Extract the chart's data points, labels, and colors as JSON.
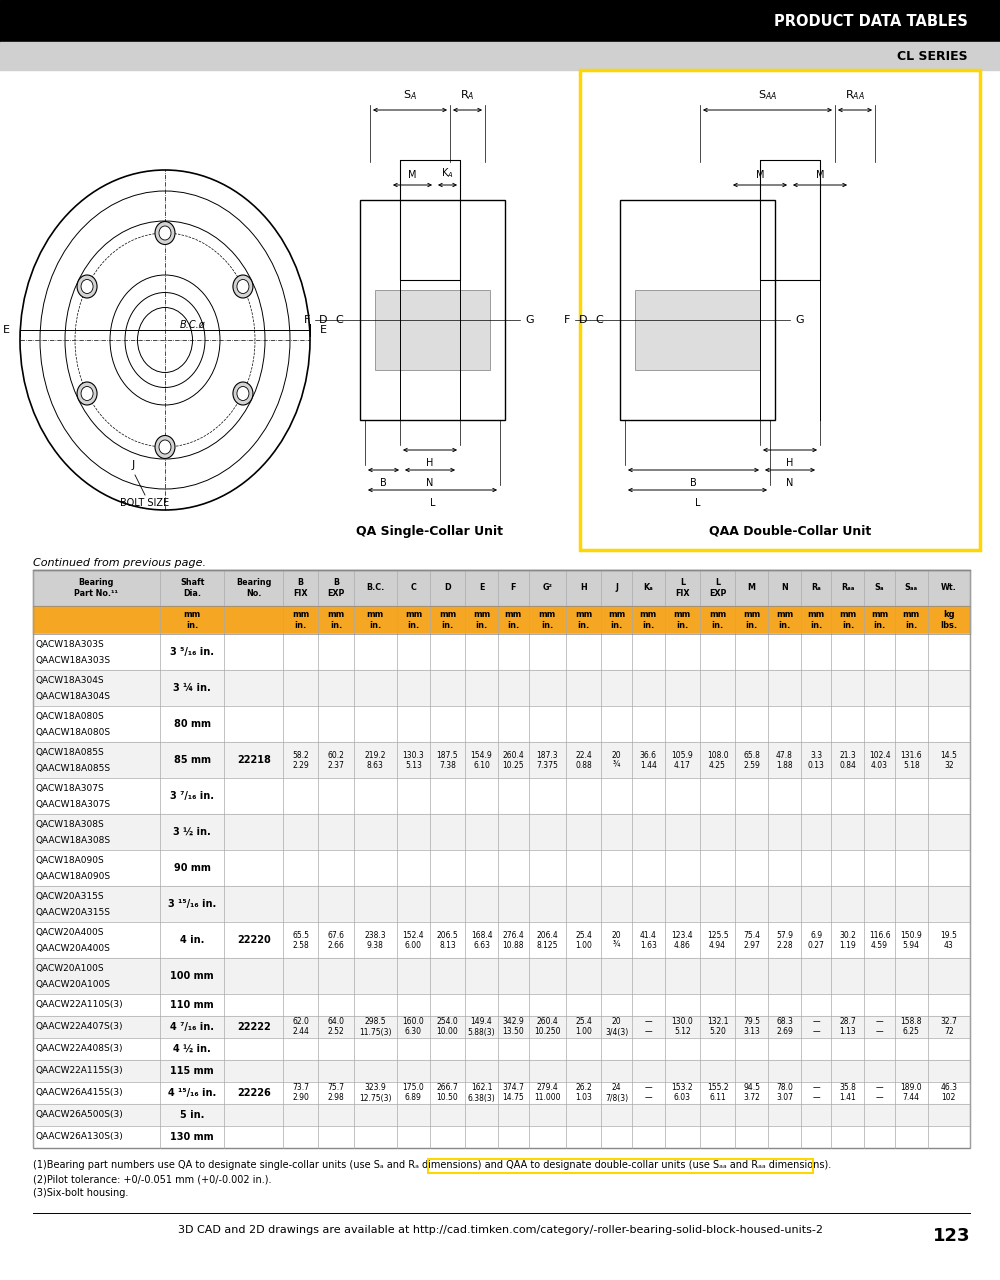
{
  "header_title": "PRODUCT DATA TABLES",
  "sub_header": "CL SERIES",
  "continued_text": "Continued from previous page.",
  "page_footer": "3D CAD and 2D drawings are available at http://cad.timken.com/category/-roller-bearing-solid-block-housed-units-2",
  "page_number": "123",
  "orange_row_bg": "#F5A623",
  "footnote1a": "(1)Bearing part numbers use QA to designate single-collar units (use S",
  "footnote1b": "A",
  "footnote1c": " and R",
  "footnote1d": "A",
  "footnote1e": " dimensions) and ",
  "footnote1f": "QAA to designate double-collar units (use S",
  "footnote1g": "AA",
  "footnote1h": " and R",
  "footnote1i": "AA",
  "footnote1j": " dimensions).",
  "footnote2": "(2)Pilot tolerance: +0/-0.051 mm (+0/-0.002 in.).",
  "footnote3": "(3)Six-bolt housing.",
  "rows": [
    {
      "part1": "QACW18A303S",
      "part2": "QAACW18A303S",
      "shaft": "3 ⁵/₁₆ in.",
      "bearing": "",
      "has_data": false,
      "mm": [],
      "inch": []
    },
    {
      "part1": "QACW18A304S",
      "part2": "QAACW18A304S",
      "shaft": "3 ¼ in.",
      "bearing": "",
      "has_data": false,
      "mm": [],
      "inch": []
    },
    {
      "part1": "QACW18A080S",
      "part2": "QAACW18A080S",
      "shaft": "80 mm",
      "bearing": "",
      "has_data": false,
      "mm": [],
      "inch": []
    },
    {
      "part1": "QACW18A085S",
      "part2": "QAACW18A085S",
      "shaft": "85 mm",
      "bearing": "22218",
      "has_data": true,
      "mm": [
        "58.2",
        "60.2",
        "219.2",
        "130.3",
        "187.5",
        "154.9",
        "260.4",
        "187.3",
        "22.4",
        "20",
        "36.6",
        "105.9",
        "108.0",
        "65.8",
        "47.8",
        "3.3",
        "21.3",
        "102.4",
        "131.6",
        "14.5"
      ],
      "inch": [
        "2.29",
        "2.37",
        "8.63",
        "5.13",
        "7.38",
        "6.10",
        "10.25",
        "7.375",
        "0.88",
        "¾",
        "1.44",
        "4.17",
        "4.25",
        "2.59",
        "1.88",
        "0.13",
        "0.84",
        "4.03",
        "5.18",
        "32"
      ]
    },
    {
      "part1": "QACW18A307S",
      "part2": "QAACW18A307S",
      "shaft": "3 ⁷/₁₆ in.",
      "bearing": "",
      "has_data": false,
      "mm": [],
      "inch": []
    },
    {
      "part1": "QACW18A308S",
      "part2": "QAACW18A308S",
      "shaft": "3 ½ in.",
      "bearing": "",
      "has_data": false,
      "mm": [],
      "inch": []
    },
    {
      "part1": "QACW18A090S",
      "part2": "QAACW18A090S",
      "shaft": "90 mm",
      "bearing": "",
      "has_data": false,
      "mm": [],
      "inch": []
    },
    {
      "part1": "QACW20A315S",
      "part2": "QAACW20A315S",
      "shaft": "3 ¹⁵/₁₆ in.",
      "bearing": "",
      "has_data": false,
      "mm": [],
      "inch": []
    },
    {
      "part1": "QACW20A400S",
      "part2": "QAACW20A400S",
      "shaft": "4 in.",
      "bearing": "22220",
      "has_data": true,
      "mm": [
        "65.5",
        "67.6",
        "238.3",
        "152.4",
        "206.5",
        "168.4",
        "276.4",
        "206.4",
        "25.4",
        "20",
        "41.4",
        "123.4",
        "125.5",
        "75.4",
        "57.9",
        "6.9",
        "30.2",
        "116.6",
        "150.9",
        "19.5"
      ],
      "inch": [
        "2.58",
        "2.66",
        "9.38",
        "6.00",
        "8.13",
        "6.63",
        "10.88",
        "8.125",
        "1.00",
        "¾",
        "1.63",
        "4.86",
        "4.94",
        "2.97",
        "2.28",
        "0.27",
        "1.19",
        "4.59",
        "5.94",
        "43"
      ]
    },
    {
      "part1": "QACW20A100S",
      "part2": "QAACW20A100S",
      "shaft": "100 mm",
      "bearing": "",
      "has_data": false,
      "mm": [],
      "inch": []
    },
    {
      "part1": "QAACW22A110S(3)",
      "part2": "",
      "shaft": "110 mm",
      "bearing": "",
      "has_data": false,
      "mm": [],
      "inch": []
    },
    {
      "part1": "QAACW22A407S(3)",
      "part2": "",
      "shaft": "4 ⁷/₁₆ in.",
      "bearing": "22222",
      "has_data": true,
      "mm": [
        "62.0",
        "64.0",
        "298.5",
        "160.0",
        "254.0",
        "149.4",
        "342.9",
        "260.4",
        "25.4",
        "20",
        "—",
        "130.0",
        "132.1",
        "79.5",
        "68.3",
        "—",
        "28.7",
        "—",
        "158.8",
        "32.7"
      ],
      "inch": [
        "2.44",
        "2.52",
        "11.75(3)",
        "6.30",
        "10.00",
        "5.88(3)",
        "13.50",
        "10.250",
        "1.00",
        "3/4(3)",
        "—",
        "5.12",
        "5.20",
        "3.13",
        "2.69",
        "—",
        "1.13",
        "—",
        "6.25",
        "72"
      ]
    },
    {
      "part1": "QAACW22A408S(3)",
      "part2": "",
      "shaft": "4 ½ in.",
      "bearing": "",
      "has_data": false,
      "mm": [],
      "inch": []
    },
    {
      "part1": "QAACW22A115S(3)",
      "part2": "",
      "shaft": "115 mm",
      "bearing": "",
      "has_data": false,
      "mm": [],
      "inch": []
    },
    {
      "part1": "QAACW26A415S(3)",
      "part2": "",
      "shaft": "4 ¹⁵/₁₆ in.",
      "bearing": "22226",
      "has_data": true,
      "mm": [
        "73.7",
        "75.7",
        "323.9",
        "175.0",
        "266.7",
        "162.1",
        "374.7",
        "279.4",
        "26.2",
        "24",
        "—",
        "153.2",
        "155.2",
        "94.5",
        "78.0",
        "—",
        "35.8",
        "—",
        "189.0",
        "46.3"
      ],
      "inch": [
        "2.90",
        "2.98",
        "12.75(3)",
        "6.89",
        "10.50",
        "6.38(3)",
        "14.75",
        "11.000",
        "1.03",
        "7/8(3)",
        "—",
        "6.03",
        "6.11",
        "3.72",
        "3.07",
        "—",
        "1.41",
        "—",
        "7.44",
        "102"
      ]
    },
    {
      "part1": "QAACW26A500S(3)",
      "part2": "",
      "shaft": "5 in.",
      "bearing": "",
      "has_data": false,
      "mm": [],
      "inch": []
    },
    {
      "part1": "QAACW26A130S(3)",
      "part2": "",
      "shaft": "130 mm",
      "bearing": "",
      "has_data": false,
      "mm": [],
      "inch": []
    }
  ]
}
